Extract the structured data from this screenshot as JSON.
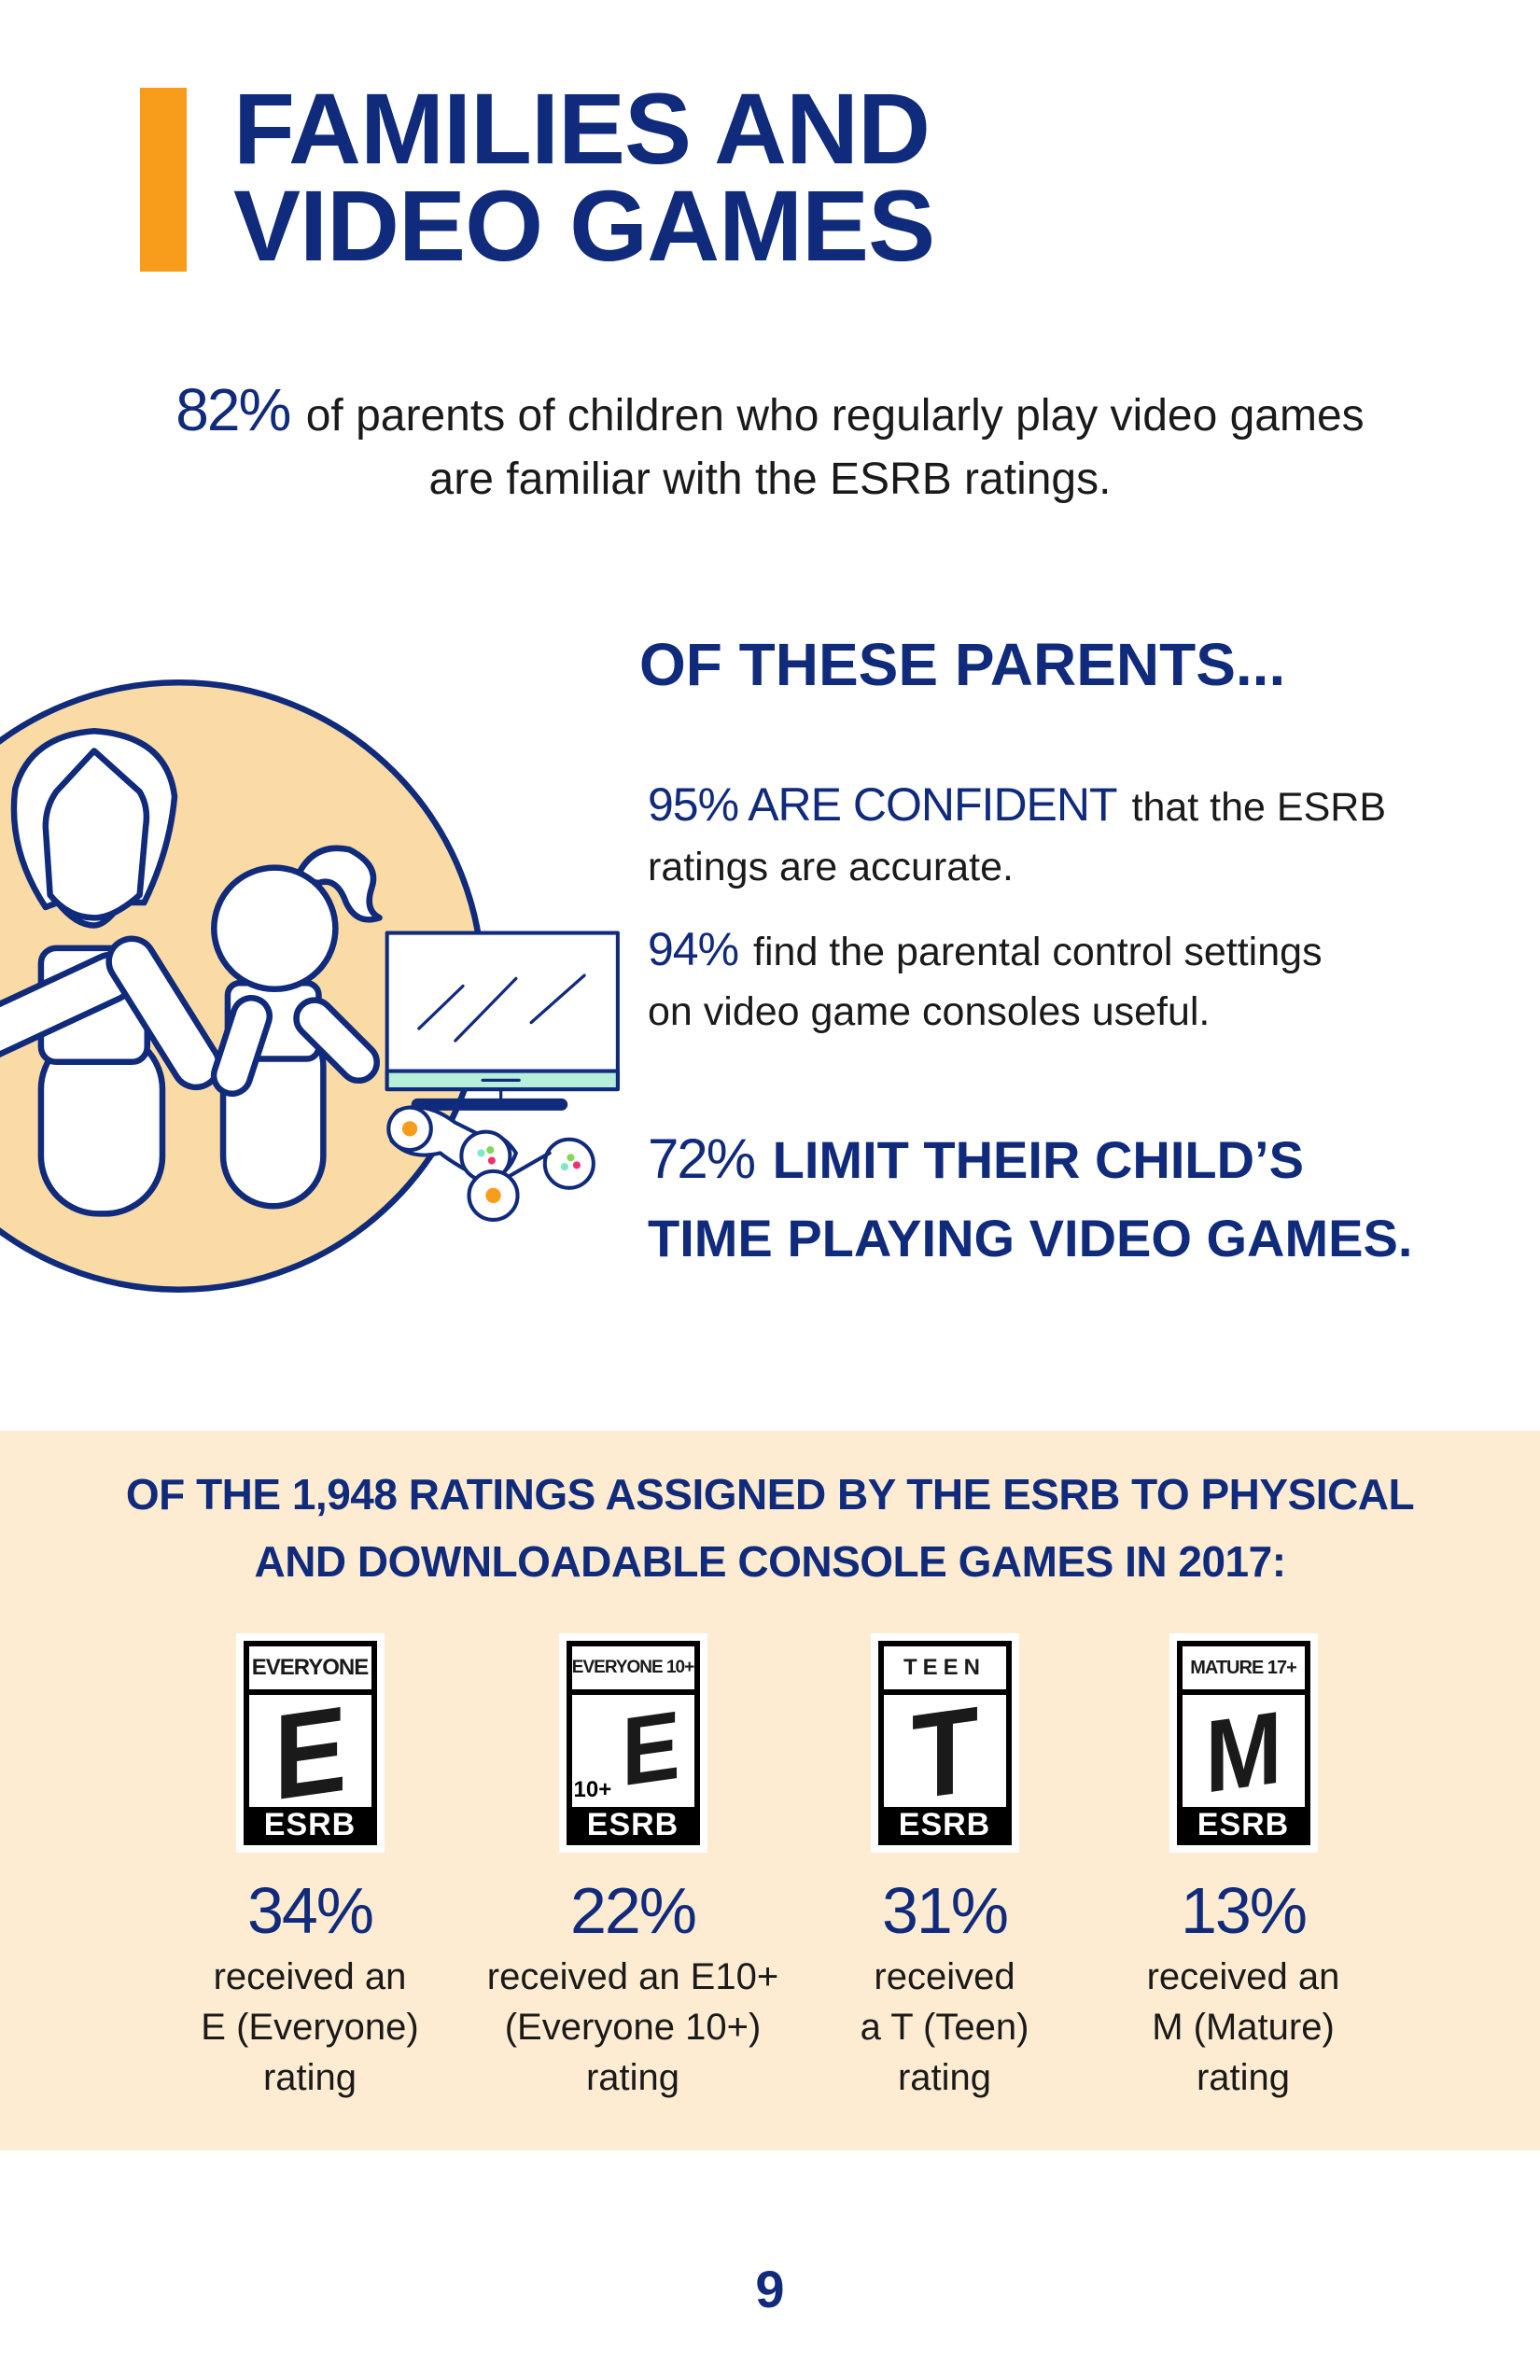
{
  "colors": {
    "navy": "#102a7c",
    "accent": "#f89c1c",
    "circle_fill": "#fadba5",
    "band": "#fdecd1",
    "screen_bar": "#b6efd9"
  },
  "title": {
    "line1": "FAMILIES AND",
    "line2": "VIDEO GAMES"
  },
  "intro": {
    "pct": "82%",
    "text1": " of parents of children who regularly play video games",
    "text2": "are familiar with the ESRB ratings."
  },
  "parents": {
    "heading": "OF THESE PARENTS...",
    "stat1": {
      "pct": "95% ARE CONFIDENT",
      "text1": " that the ESRB",
      "text2": "ratings are accurate."
    },
    "stat2": {
      "pct": "94%",
      "text1": " find the parental control settings",
      "text2": "on video game consoles useful."
    },
    "stat3": {
      "pct": "72%",
      "text1": " LIMIT THEIR CHILD’S",
      "text2": "TIME PLAYING VIDEO GAMES."
    }
  },
  "ratings_section": {
    "heading1": "OF THE 1,948 RATINGS ASSIGNED BY THE ESRB TO PHYSICAL",
    "heading2": "AND DOWNLOADABLE CONSOLE GAMES IN 2017:",
    "ratings": [
      {
        "logo_top": "EVERYONE",
        "letter": "E",
        "extra": "",
        "brand": "ESRB",
        "pct": "34%",
        "desc1": "received an",
        "desc2": "E (Everyone)",
        "desc3": "rating"
      },
      {
        "logo_top": "EVERYONE 10+",
        "letter": "E",
        "extra": "10+",
        "brand": "ESRB",
        "pct": "22%",
        "desc1": "received an E10+",
        "desc2": "(Everyone 10+)",
        "desc3": "rating"
      },
      {
        "logo_top": "TEEN",
        "letter": "T",
        "extra": "",
        "brand": "ESRB",
        "pct": "31%",
        "desc1": "received",
        "desc2": "a T (Teen)",
        "desc3": "rating"
      },
      {
        "logo_top": "MATURE 17+",
        "letter": "M",
        "extra": "",
        "brand": "ESRB",
        "pct": "13%",
        "desc1": "received an",
        "desc2": "M (Mature)",
        "desc3": "rating"
      }
    ]
  },
  "page_number": "9"
}
